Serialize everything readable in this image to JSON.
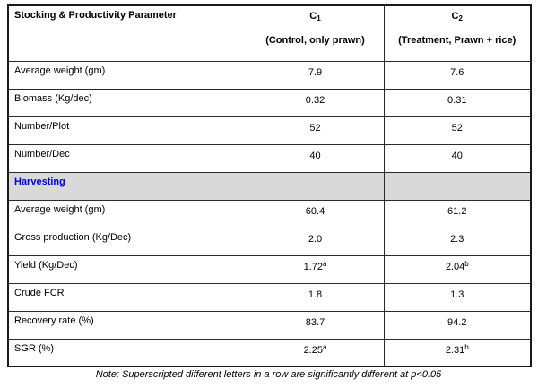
{
  "table": {
    "header": {
      "parameter": "Stocking & Productivity Parameter",
      "c1": {
        "symbol": "C",
        "subscript": "1",
        "description": "(Control, only prawn)"
      },
      "c2": {
        "symbol": "C",
        "subscript": "2",
        "description": "(Treatment, Prawn + rice)"
      }
    },
    "rows": [
      {
        "label": "Average weight (gm)",
        "c1": "7.9",
        "c2": "7.6"
      },
      {
        "label": "Biomass (Kg/dec)",
        "c1": "0.32",
        "c2": "0.31"
      },
      {
        "label": "Number/Plot",
        "c1": "52",
        "c2": "52"
      },
      {
        "label": "Number/Dec",
        "c1": "40",
        "c2": "40"
      },
      {
        "label": "Harvesting",
        "type": "section"
      },
      {
        "label": "Average weight (gm)",
        "c1": "60.4",
        "c2": "61.2"
      },
      {
        "label": "Gross production (Kg/Dec)",
        "c1": "2.0",
        "c2": "2.3"
      },
      {
        "label": "Yield (Kg/Dec)",
        "c1": "1.72",
        "c1_sup": "a",
        "c2": "2.04",
        "c2_sup": "b"
      },
      {
        "label": "Crude FCR",
        "c1": "1.8",
        "c2": "1.3"
      },
      {
        "label": "Recovery rate (%)",
        "c1": "83.7",
        "c2": "94.2"
      },
      {
        "label": "SGR (%)",
        "c1": "2.25",
        "c1_sup": "a",
        "c2": "2.31",
        "c2_sup": "b"
      }
    ],
    "note": "Note: Superscripted different letters in a row are significantly different at p<0.05"
  },
  "colors": {
    "section_background": "#d9d9d9",
    "section_text": "#0000ee",
    "border": "#1a1a1a"
  }
}
